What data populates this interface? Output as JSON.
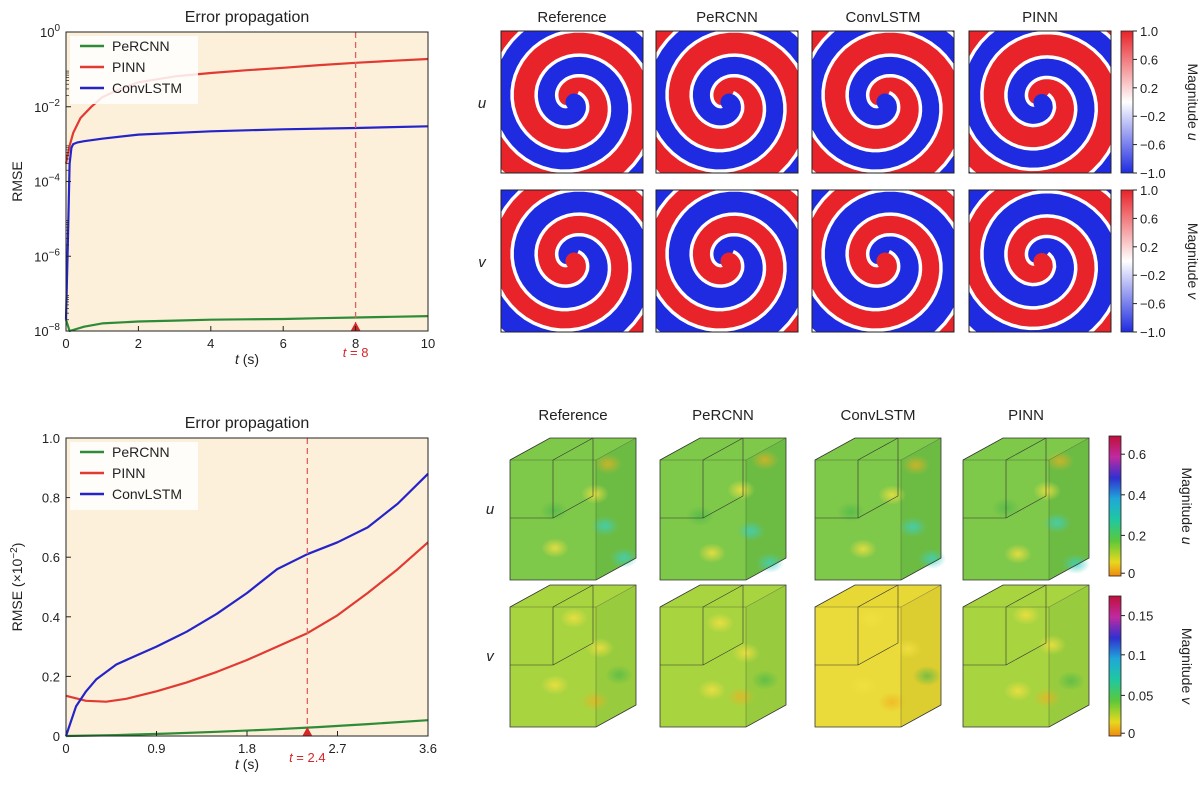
{
  "chart_data": [
    {
      "type": "line",
      "title": "Error propagation",
      "xlabel_var": "t",
      "xlabel_unit": " (s)",
      "ylabel": "RMSE",
      "yscale": "log",
      "xlim": [
        0,
        10
      ],
      "ylim": [
        1e-08,
        1
      ],
      "xticks": [
        "0",
        "2",
        "4",
        "6",
        "8",
        "10"
      ],
      "yticks": [
        {
          "base": "10",
          "exp": "−8"
        },
        {
          "base": "10",
          "exp": "−6"
        },
        {
          "base": "10",
          "exp": "−4"
        },
        {
          "base": "10",
          "exp": "−2"
        },
        {
          "base": "10",
          "exp": "0"
        }
      ],
      "grid": false,
      "legend": "top-left",
      "background": "#fdf0da",
      "marker": {
        "x": 8,
        "label_var": "t",
        "label_rest": " = 8"
      },
      "series": [
        {
          "name": "PeRCNN",
          "color": "#2e8b37",
          "x": [
            0,
            0.1,
            0.5,
            1,
            2,
            3,
            4,
            5,
            6,
            7,
            8,
            9,
            10
          ],
          "y": [
            2e-08,
            1e-08,
            1.3e-08,
            1.6e-08,
            1.8e-08,
            1.9e-08,
            2e-08,
            2.05e-08,
            2.1e-08,
            2.2e-08,
            2.3e-08,
            2.4e-08,
            2.5e-08
          ]
        },
        {
          "name": "PINN",
          "color": "#e03a33",
          "x": [
            0,
            0.1,
            0.2,
            0.4,
            0.7,
            1,
            1.5,
            2,
            3,
            4,
            5,
            6,
            7,
            8,
            9,
            10
          ],
          "y": [
            0.0003,
            0.0009,
            0.002,
            0.005,
            0.01,
            0.018,
            0.03,
            0.045,
            0.065,
            0.08,
            0.095,
            0.11,
            0.13,
            0.15,
            0.17,
            0.19
          ]
        },
        {
          "name": "ConvLSTM",
          "color": "#2424c8",
          "x": [
            0,
            0.05,
            0.1,
            0.15,
            0.2,
            0.3,
            0.5,
            1,
            2,
            4,
            6,
            8,
            10
          ],
          "y": [
            2e-08,
            2e-06,
            0.0003,
            0.0008,
            0.001,
            0.0011,
            0.0012,
            0.0014,
            0.0018,
            0.0022,
            0.0025,
            0.0027,
            0.003
          ]
        }
      ]
    },
    {
      "type": "line",
      "title": "Error propagation",
      "xlabel_var": "t",
      "xlabel_unit": " (s)",
      "ylabel_pre": "RMSE (×10",
      "ylabel_exp": "−2",
      "ylabel_post": ")",
      "xlim": [
        0,
        3.6
      ],
      "ylim": [
        0,
        1.0
      ],
      "xticks": [
        "0",
        "0.9",
        "1.8",
        "2.7",
        "3.6"
      ],
      "yticks": [
        "0",
        "0.2",
        "0.4",
        "0.6",
        "0.8",
        "1.0"
      ],
      "grid": false,
      "legend": "top-left",
      "background": "#fdf0da",
      "marker": {
        "x": 2.4,
        "label_var": "t",
        "label_rest": " = 2.4"
      },
      "series": [
        {
          "name": "PeRCNN",
          "color": "#2e8b37",
          "x": [
            0,
            0.5,
            1.0,
            1.5,
            2.0,
            2.5,
            3.0,
            3.6
          ],
          "y": [
            0,
            0.003,
            0.008,
            0.014,
            0.021,
            0.03,
            0.04,
            0.053
          ]
        },
        {
          "name": "PINN",
          "color": "#e03a33",
          "x": [
            0,
            0.2,
            0.4,
            0.6,
            0.9,
            1.2,
            1.5,
            1.8,
            2.1,
            2.4,
            2.7,
            3.0,
            3.3,
            3.6
          ],
          "y": [
            0.135,
            0.118,
            0.115,
            0.125,
            0.15,
            0.18,
            0.215,
            0.255,
            0.3,
            0.345,
            0.405,
            0.48,
            0.56,
            0.65
          ]
        },
        {
          "name": "ConvLSTM",
          "color": "#2424c8",
          "x": [
            0,
            0.1,
            0.2,
            0.3,
            0.5,
            0.7,
            0.9,
            1.2,
            1.5,
            1.8,
            2.1,
            2.4,
            2.7,
            3.0,
            3.3,
            3.6
          ],
          "y": [
            0,
            0.1,
            0.15,
            0.19,
            0.24,
            0.27,
            0.3,
            0.35,
            0.41,
            0.48,
            0.56,
            0.61,
            0.65,
            0.7,
            0.78,
            0.88
          ]
        }
      ]
    }
  ],
  "spiral_grid": {
    "columns": [
      "Reference",
      "PeRCNN",
      "ConvLSTM",
      "PINN"
    ],
    "rows": [
      "u",
      "v"
    ],
    "colorbars": [
      {
        "ticks": [
          "1.0",
          "0.6",
          "0.2",
          "−0.2",
          "−0.6",
          "−1.0"
        ],
        "label_pre": "Magnitude ",
        "label_var": "u"
      },
      {
        "ticks": [
          "1.0",
          "0.6",
          "0.2",
          "−0.2",
          "−0.6",
          "−1.0"
        ],
        "label_pre": "Magnitude ",
        "label_var": "v"
      }
    ],
    "colors": {
      "positive": "#e8232a",
      "negative": "#1f2be0",
      "mid": "#ffffff"
    }
  },
  "cube_grid": {
    "columns": [
      "Reference",
      "PeRCNN",
      "ConvLSTM",
      "PINN"
    ],
    "rows": [
      "u",
      "v"
    ],
    "colorbars": [
      {
        "ticks": [
          "0.6",
          "0.4",
          "0.2",
          "0"
        ],
        "label_pre": "Magnitude ",
        "label_var": "u"
      },
      {
        "ticks": [
          "0.15",
          "0.1",
          "0.05",
          "0"
        ],
        "label_pre": "Magnitude ",
        "label_var": "v"
      }
    ]
  }
}
